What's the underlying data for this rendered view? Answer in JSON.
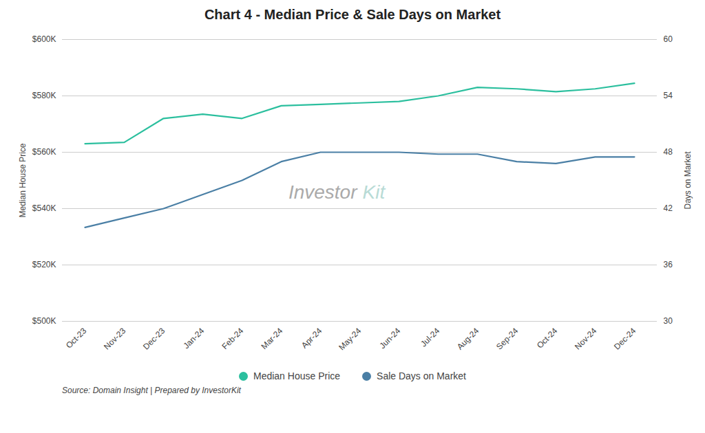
{
  "chart_data": {
    "type": "line",
    "title": "Chart 4 - Median Price & Sale Days on Market",
    "source": "Source: Domain Insight | Prepared by InvestorKit",
    "categories": [
      "Oct-23",
      "Nov-23",
      "Dec-23",
      "Jan-24",
      "Feb-24",
      "Mar-24",
      "Apr-24",
      "May-24",
      "Jun-24",
      "Jul-24",
      "Aug-24",
      "Sep-24",
      "Oct-24",
      "Nov-24",
      "Dec-24"
    ],
    "series": [
      {
        "name": "Median House Price",
        "color": "#2bbf9e",
        "values": [
          563000,
          563500,
          572000,
          573500,
          572000,
          576500,
          577000,
          577500,
          578000,
          580000,
          583000,
          582500,
          581500,
          582500,
          584500
        ]
      },
      {
        "name": "Sale Days on Market",
        "color": "#4a7fa5",
        "axis": "y2",
        "values": [
          40,
          41,
          42,
          43.5,
          45,
          47,
          48,
          48,
          48,
          47.8,
          47.8,
          47,
          46.8,
          47.5,
          47.5
        ]
      }
    ],
    "ylabel": "Median House Price",
    "y2label": "Days on Market",
    "ylim": [
      500000,
      600000
    ],
    "yticks": [
      {
        "value": 500000,
        "label": "$500K"
      },
      {
        "value": 520000,
        "label": "$520K"
      },
      {
        "value": 540000,
        "label": "$540K"
      },
      {
        "value": 560000,
        "label": "$560K"
      },
      {
        "value": 580000,
        "label": "$580K"
      },
      {
        "value": 600000,
        "label": "$600K"
      }
    ],
    "y2lim": [
      30,
      60
    ],
    "y2ticks": [
      30,
      36,
      42,
      48,
      54,
      60
    ],
    "grid": true,
    "legend": "bottom",
    "annotations": [
      {
        "text": "Investor",
        "color": "#aaaaaa"
      },
      {
        "text": "Kit",
        "color": "#b8dbd6"
      }
    ]
  }
}
